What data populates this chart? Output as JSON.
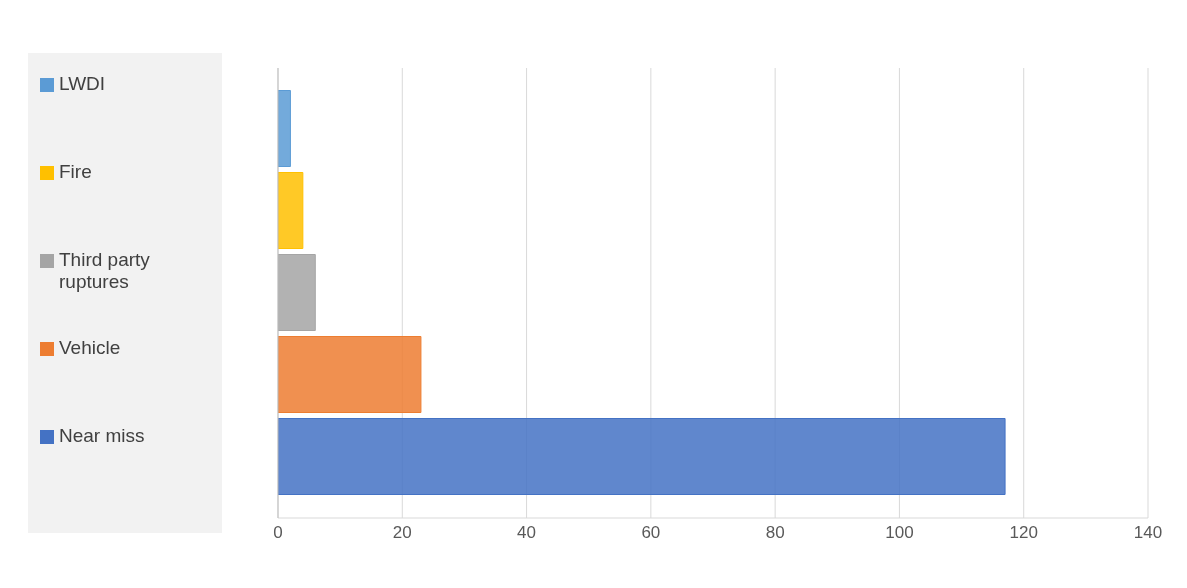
{
  "chart_data": {
    "type": "bar",
    "orientation": "horizontal",
    "categories": [
      null
    ],
    "series": [
      {
        "name": "LWDI",
        "color": "#5b9bd5",
        "values": [
          2
        ]
      },
      {
        "name": "Fire",
        "color": "#ffc000",
        "values": [
          4
        ]
      },
      {
        "name": "Third party ruptures",
        "color": "#a5a5a5",
        "values": [
          6
        ]
      },
      {
        "name": "Vehicle",
        "color": "#ed7d31",
        "values": [
          23
        ]
      },
      {
        "name": "Near miss",
        "color": "#4472c4",
        "values": [
          117
        ]
      }
    ],
    "xlim": [
      0,
      140
    ],
    "xticks": [
      0,
      20,
      40,
      60,
      80,
      100,
      120,
      140
    ],
    "grid": "x",
    "legend": "left"
  }
}
